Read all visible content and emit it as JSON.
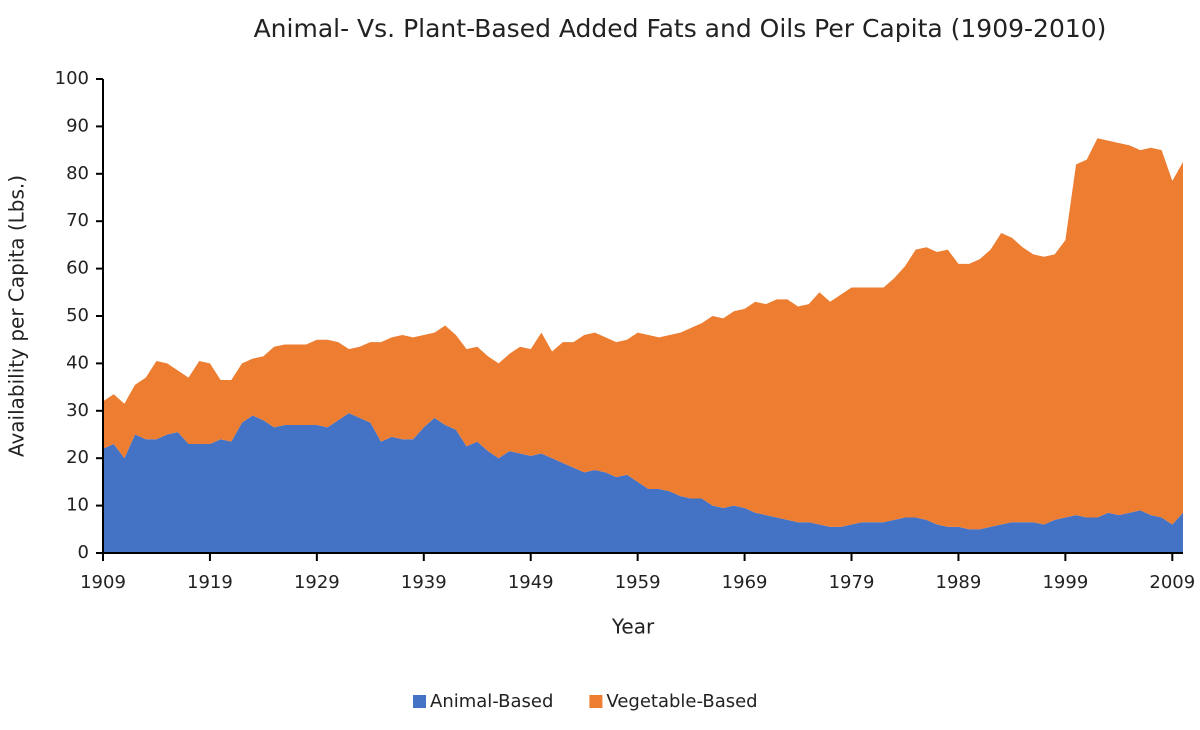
{
  "chart_data": {
    "type": "stacked_area",
    "title": "Animal- Vs. Plant-Based Added Fats and Oils Per Capita (1909-2010)",
    "x_label": "Year",
    "y_label": "Availability per Capita (Lbs.)",
    "x": [
      1909,
      1910,
      1911,
      1912,
      1913,
      1914,
      1915,
      1916,
      1917,
      1918,
      1919,
      1920,
      1921,
      1922,
      1923,
      1924,
      1925,
      1926,
      1927,
      1928,
      1929,
      1930,
      1931,
      1932,
      1933,
      1934,
      1935,
      1936,
      1937,
      1938,
      1939,
      1940,
      1941,
      1942,
      1943,
      1944,
      1945,
      1946,
      1947,
      1948,
      1949,
      1950,
      1951,
      1952,
      1953,
      1954,
      1955,
      1956,
      1957,
      1958,
      1959,
      1960,
      1961,
      1962,
      1963,
      1964,
      1965,
      1966,
      1967,
      1968,
      1969,
      1970,
      1971,
      1972,
      1973,
      1974,
      1975,
      1976,
      1977,
      1978,
      1979,
      1980,
      1981,
      1982,
      1983,
      1984,
      1985,
      1986,
      1987,
      1988,
      1989,
      1990,
      1991,
      1992,
      1993,
      1994,
      1995,
      1996,
      1997,
      1998,
      1999,
      2000,
      2001,
      2002,
      2003,
      2004,
      2005,
      2006,
      2007,
      2008,
      2009,
      2010
    ],
    "series": [
      {
        "name": "Animal-Based",
        "color": "#4472c4",
        "values": [
          22,
          23,
          20,
          25,
          24,
          24,
          25,
          25.5,
          23,
          23,
          23,
          24,
          23.5,
          27.5,
          29,
          28,
          26.5,
          27,
          27,
          27,
          27,
          26.5,
          28,
          29.5,
          28.5,
          27.5,
          23.5,
          24.5,
          24,
          24,
          26.5,
          28.5,
          27,
          26,
          22.5,
          23.5,
          21.5,
          20,
          21.5,
          21,
          20.5,
          21,
          20,
          19,
          18,
          17,
          17.5,
          17,
          16,
          16.5,
          15,
          13.5,
          13.5,
          13,
          12,
          11.5,
          11.5,
          10,
          9.5,
          10,
          9.5,
          8.5,
          8,
          7.5,
          7,
          6.5,
          6.5,
          6,
          5.5,
          5.5,
          6,
          6.5,
          6.5,
          6.5,
          7,
          7.5,
          7.5,
          7,
          6,
          5.5,
          5.5,
          5,
          5,
          5.5,
          6,
          6.5,
          6.5,
          6.5,
          6,
          7,
          7.5,
          8,
          7.5,
          7.5,
          8.5,
          8,
          8.5,
          9,
          8,
          7.5,
          6,
          8.5
        ]
      },
      {
        "name": "Vegetable-Based",
        "color": "#ed7d31",
        "values": [
          10,
          10.5,
          11.5,
          10.5,
          13,
          16.5,
          15,
          13,
          14,
          17.5,
          17,
          12.5,
          13,
          12.5,
          12,
          13.5,
          17,
          17,
          17,
          17,
          18,
          18.5,
          16.5,
          13.5,
          15,
          17,
          21,
          21,
          22,
          21.5,
          19.5,
          18,
          21,
          20,
          20.5,
          20,
          20,
          20,
          20.5,
          22.5,
          22.5,
          25.5,
          22.5,
          25.5,
          26.5,
          29,
          29,
          28.5,
          28.5,
          28.5,
          31.5,
          32.5,
          32,
          33,
          34.5,
          36,
          37,
          40,
          40,
          41,
          42,
          44.5,
          44.5,
          46,
          46.5,
          45.5,
          46,
          49,
          47.5,
          49,
          50,
          49.5,
          49.5,
          49.5,
          51,
          53,
          56.5,
          57.5,
          57.5,
          58.5,
          55.5,
          56,
          57,
          58.5,
          61.5,
          60,
          58,
          56.5,
          56.5,
          56,
          58.5,
          74,
          75.5,
          80,
          78.5,
          78.5,
          77.5,
          76,
          77.5,
          77.5,
          72.5,
          74
        ]
      }
    ],
    "xlim": [
      1909,
      2010
    ],
    "xticks": [
      1909,
      1919,
      1929,
      1939,
      1949,
      1959,
      1969,
      1979,
      1989,
      1999,
      2009
    ],
    "ylim": [
      0,
      100
    ],
    "yticks": [
      0,
      10,
      20,
      30,
      40,
      50,
      60,
      70,
      80,
      90,
      100
    ],
    "legend": "bottom"
  }
}
